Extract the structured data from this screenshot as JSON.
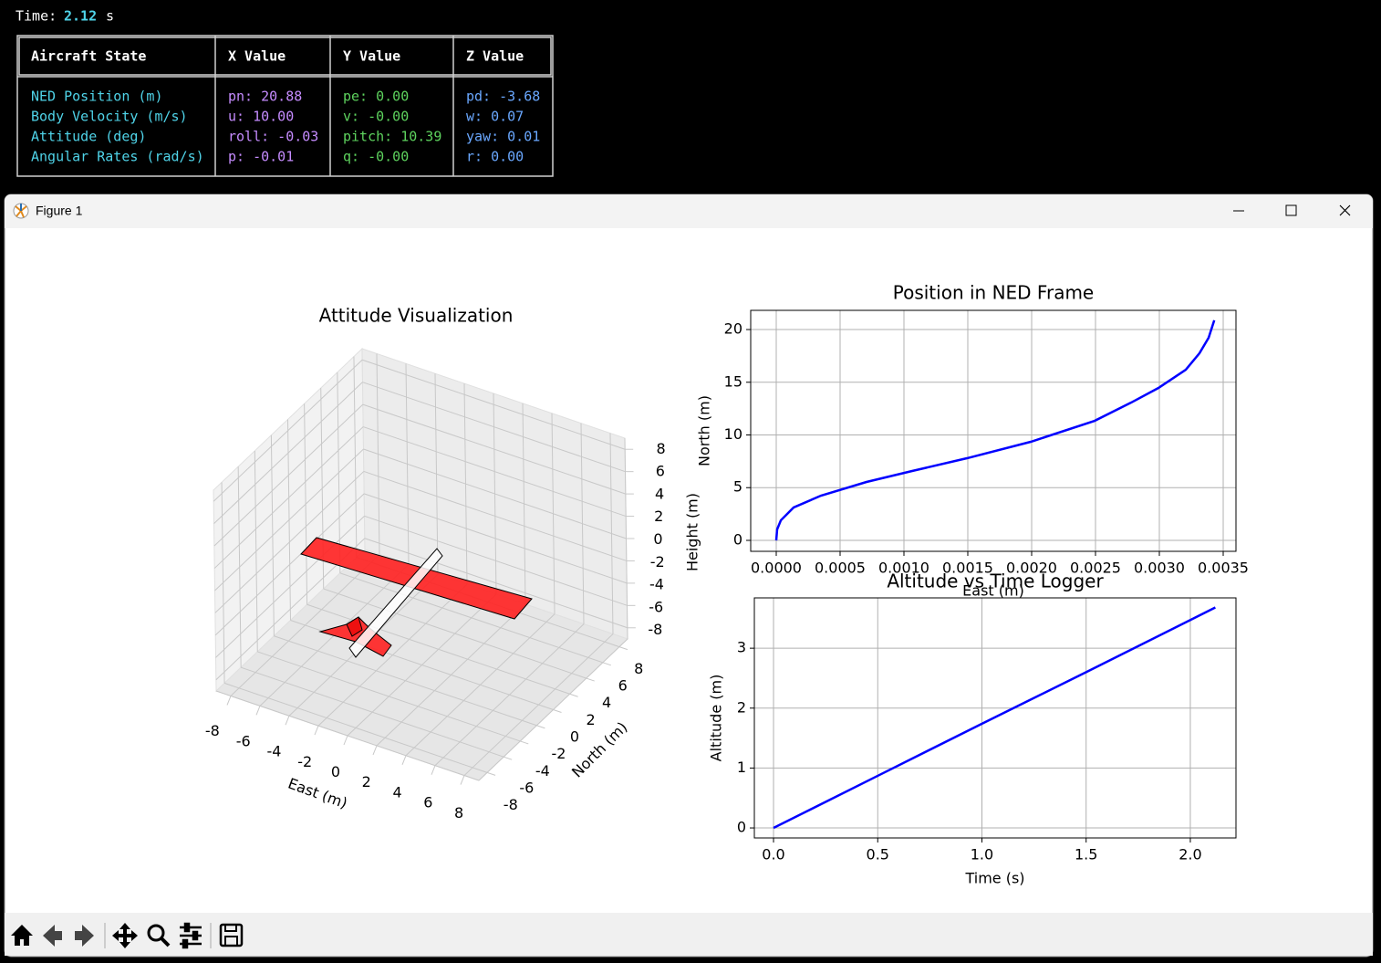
{
  "terminal": {
    "time_label": "Time:",
    "time_value": "2.12",
    "time_unit": "s",
    "table": {
      "headers": [
        "Aircraft State",
        "X Value",
        "Y Value",
        "Z Value"
      ],
      "rows": [
        [
          "NED Position (m)",
          "pn: 20.88",
          "pe: 0.00",
          "pd: -3.68"
        ],
        [
          "Body Velocity (m/s)",
          "u: 10.00",
          "v: -0.00",
          "w: 0.07"
        ],
        [
          "Attitude (deg)",
          "roll: -0.03",
          "pitch: 10.39",
          "yaw: 0.01"
        ],
        [
          "Angular Rates (rad/s)",
          "p: -0.01",
          "q: -0.00",
          "r: 0.00"
        ]
      ]
    }
  },
  "window": {
    "title": "Figure 1"
  },
  "chart_data": [
    {
      "type": "surface3d",
      "title": "Attitude Visualization",
      "xlabel": "East (m)",
      "ylabel": "North (m)",
      "zlabel": "Height (m)",
      "xlim": [
        -9,
        9
      ],
      "ylim": [
        -9,
        9
      ],
      "zlim": [
        -9,
        9
      ],
      "xticks": [
        -8,
        -6,
        -4,
        -2,
        0,
        2,
        4,
        6,
        8
      ],
      "yticks": [
        -8,
        -6,
        -4,
        -2,
        0,
        2,
        4,
        6,
        8
      ],
      "zticks": [
        -8,
        -6,
        -4,
        -2,
        0,
        2,
        4,
        6,
        8
      ],
      "grid": true
    },
    {
      "type": "line",
      "title": "Position in NED Frame",
      "xlabel": "East (m)",
      "ylabel": "North (m)",
      "x": [
        0,
        7e-06,
        3.6e-05,
        0.000136,
        0.00035,
        0.000707,
        0.001064,
        0.001493,
        0.001993,
        0.002493,
        0.002779,
        0.002993,
        0.003207,
        0.003314,
        0.003386,
        0.00343
      ],
      "values": [
        0,
        1.04,
        1.9,
        3.12,
        4.24,
        5.54,
        6.58,
        7.79,
        9.35,
        11.34,
        13.07,
        14.46,
        16.19,
        17.75,
        19.22,
        20.88
      ],
      "color": "#0000ff",
      "xlim": [
        -0.0002,
        0.0036
      ],
      "ylim": [
        -1.04,
        21.82
      ],
      "xticks": [
        {
          "value": 0,
          "label": "0.0000"
        },
        {
          "value": 0.0005,
          "label": "0.0005"
        },
        {
          "value": 0.001,
          "label": "0.0010"
        },
        {
          "value": 0.0015,
          "label": "0.0015"
        },
        {
          "value": 0.002,
          "label": "0.0020"
        },
        {
          "value": 0.0025,
          "label": "0.0025"
        },
        {
          "value": 0.003,
          "label": "0.0030"
        },
        {
          "value": 0.0035,
          "label": "0.0035"
        }
      ],
      "yticks": [
        0,
        5,
        10,
        15,
        20
      ],
      "grid": true
    },
    {
      "type": "line",
      "title": "Altitude vs Time Logger",
      "xlabel": "Time (s)",
      "ylabel": "Altitude (m)",
      "x": [
        0,
        0.5,
        1,
        1.5,
        2,
        2.12
      ],
      "values": [
        0,
        0.87,
        1.74,
        2.6,
        3.47,
        3.68
      ],
      "color": "#0000ff",
      "xlim": [
        -0.092,
        2.219
      ],
      "ylim": [
        -0.167,
        3.84
      ],
      "xticks": [
        {
          "value": 0,
          "label": "0.0"
        },
        {
          "value": 0.5,
          "label": "0.5"
        },
        {
          "value": 1,
          "label": "1.0"
        },
        {
          "value": 1.5,
          "label": "1.5"
        },
        {
          "value": 2,
          "label": "2.0"
        }
      ],
      "yticks": [
        0,
        1,
        2,
        3
      ],
      "grid": true
    }
  ]
}
